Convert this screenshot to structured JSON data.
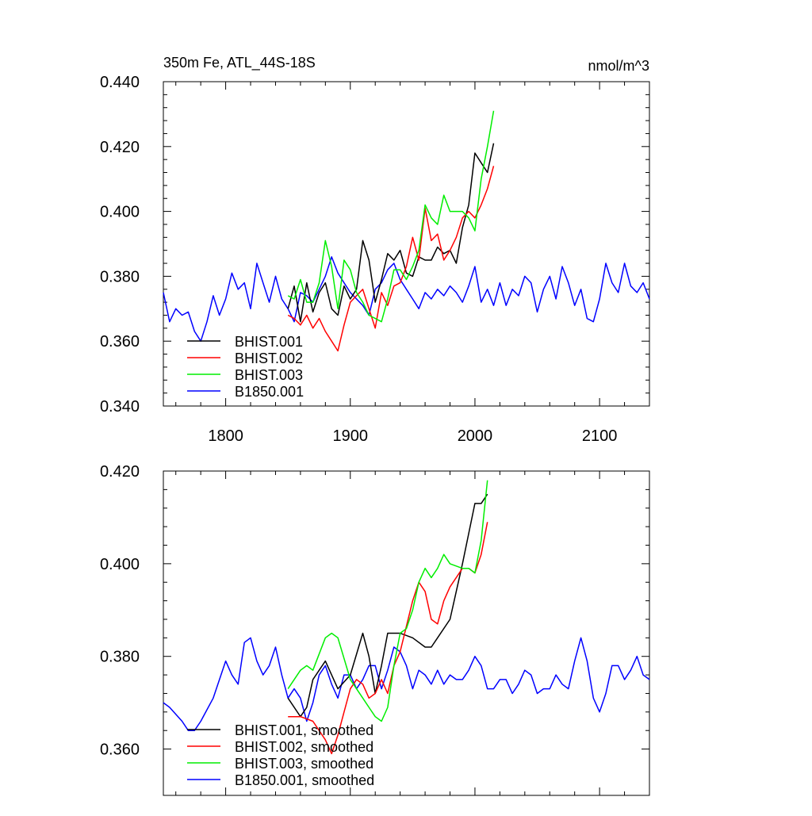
{
  "chart_data": [
    {
      "type": "line",
      "title": "350m Fe, ATL_44S-18S",
      "units": "nmol/m^3",
      "xlim": [
        1750,
        2140
      ],
      "ylim": [
        0.34,
        0.44
      ],
      "x_ticks": [
        1800,
        1900,
        2000,
        2100
      ],
      "x_tick_labels": [
        "1800",
        "1900",
        "2000",
        "2100"
      ],
      "y_ticks": [
        0.34,
        0.36,
        0.38,
        0.4,
        0.42,
        0.44
      ],
      "y_tick_labels": [
        "0.340",
        "0.360",
        "0.380",
        "0.400",
        "0.420",
        "0.440"
      ],
      "legend_position": "bottom-left",
      "series": [
        {
          "name": "BHIST.001",
          "color": "#000000",
          "x": [
            1850,
            1855,
            1860,
            1865,
            1870,
            1875,
            1880,
            1885,
            1890,
            1895,
            1900,
            1905,
            1910,
            1915,
            1920,
            1925,
            1930,
            1935,
            1940,
            1945,
            1950,
            1955,
            1960,
            1965,
            1970,
            1975,
            1980,
            1985,
            1990,
            1995,
            2000,
            2005,
            2010,
            2015
          ],
          "y": [
            0.37,
            0.377,
            0.366,
            0.378,
            0.369,
            0.375,
            0.378,
            0.37,
            0.368,
            0.377,
            0.373,
            0.376,
            0.391,
            0.385,
            0.372,
            0.379,
            0.387,
            0.385,
            0.388,
            0.381,
            0.38,
            0.386,
            0.385,
            0.385,
            0.389,
            0.387,
            0.388,
            0.384,
            0.395,
            0.402,
            0.418,
            0.415,
            0.412,
            0.421
          ]
        },
        {
          "name": "BHIST.002",
          "color": "#ff0000",
          "x": [
            1850,
            1855,
            1860,
            1865,
            1870,
            1875,
            1880,
            1885,
            1890,
            1895,
            1900,
            1905,
            1910,
            1915,
            1920,
            1925,
            1930,
            1935,
            1940,
            1945,
            1950,
            1955,
            1960,
            1965,
            1970,
            1975,
            1980,
            1985,
            1990,
            1995,
            2000,
            2005,
            2010,
            2015
          ],
          "y": [
            0.368,
            0.367,
            0.365,
            0.368,
            0.364,
            0.367,
            0.363,
            0.36,
            0.357,
            0.365,
            0.372,
            0.374,
            0.376,
            0.37,
            0.364,
            0.375,
            0.371,
            0.377,
            0.378,
            0.383,
            0.392,
            0.385,
            0.401,
            0.391,
            0.393,
            0.385,
            0.388,
            0.392,
            0.398,
            0.4,
            0.398,
            0.402,
            0.407,
            0.414
          ]
        },
        {
          "name": "BHIST.003",
          "color": "#00ee00",
          "x": [
            1850,
            1855,
            1860,
            1865,
            1870,
            1875,
            1880,
            1885,
            1890,
            1895,
            1900,
            1905,
            1910,
            1915,
            1920,
            1925,
            1930,
            1935,
            1940,
            1945,
            1950,
            1955,
            1960,
            1965,
            1970,
            1975,
            1980,
            1985,
            1990,
            1995,
            2000,
            2005,
            2010,
            2015
          ],
          "y": [
            0.374,
            0.373,
            0.379,
            0.372,
            0.372,
            0.378,
            0.391,
            0.383,
            0.37,
            0.385,
            0.382,
            0.375,
            0.372,
            0.368,
            0.367,
            0.366,
            0.373,
            0.382,
            0.382,
            0.379,
            0.383,
            0.388,
            0.402,
            0.398,
            0.396,
            0.405,
            0.4,
            0.4,
            0.4,
            0.398,
            0.394,
            0.41,
            0.42,
            0.431
          ]
        },
        {
          "name": "B1850.001",
          "color": "#0000ff",
          "x": [
            1750,
            1755,
            1760,
            1765,
            1770,
            1775,
            1780,
            1785,
            1790,
            1795,
            1800,
            1805,
            1810,
            1815,
            1820,
            1825,
            1830,
            1835,
            1840,
            1845,
            1850,
            1855,
            1860,
            1865,
            1870,
            1875,
            1880,
            1885,
            1890,
            1895,
            1900,
            1905,
            1910,
            1915,
            1920,
            1925,
            1930,
            1935,
            1940,
            1945,
            1950,
            1955,
            1960,
            1965,
            1970,
            1975,
            1980,
            1985,
            1990,
            1995,
            2000,
            2005,
            2010,
            2015,
            2020,
            2025,
            2030,
            2035,
            2040,
            2045,
            2050,
            2055,
            2060,
            2065,
            2070,
            2075,
            2080,
            2085,
            2090,
            2095,
            2100,
            2105,
            2110,
            2115,
            2120,
            2125,
            2130,
            2135,
            2140
          ],
          "y": [
            0.375,
            0.366,
            0.37,
            0.368,
            0.369,
            0.363,
            0.36,
            0.366,
            0.374,
            0.368,
            0.373,
            0.381,
            0.376,
            0.378,
            0.37,
            0.384,
            0.378,
            0.372,
            0.38,
            0.373,
            0.37,
            0.366,
            0.375,
            0.374,
            0.372,
            0.376,
            0.38,
            0.386,
            0.381,
            0.378,
            0.375,
            0.373,
            0.371,
            0.368,
            0.376,
            0.378,
            0.382,
            0.384,
            0.379,
            0.376,
            0.373,
            0.37,
            0.375,
            0.373,
            0.376,
            0.374,
            0.377,
            0.375,
            0.372,
            0.377,
            0.383,
            0.372,
            0.376,
            0.371,
            0.378,
            0.371,
            0.376,
            0.374,
            0.38,
            0.378,
            0.369,
            0.376,
            0.38,
            0.373,
            0.383,
            0.378,
            0.371,
            0.376,
            0.367,
            0.366,
            0.373,
            0.384,
            0.378,
            0.375,
            0.384,
            0.377,
            0.375,
            0.378,
            0.373
          ]
        }
      ]
    },
    {
      "type": "line",
      "xlim": [
        1750,
        2140
      ],
      "ylim": [
        0.35,
        0.42
      ],
      "x_ticks": [
        1800,
        1900,
        2000,
        2100
      ],
      "y_ticks": [
        0.36,
        0.38,
        0.4,
        0.42
      ],
      "y_tick_labels": [
        "0.360",
        "0.380",
        "0.400",
        "0.420"
      ],
      "legend_position": "bottom-left",
      "series": [
        {
          "name": "BHIST.001, smoothed",
          "color": "#000000",
          "x": [
            1850,
            1860,
            1865,
            1870,
            1880,
            1890,
            1900,
            1910,
            1915,
            1920,
            1925,
            1930,
            1940,
            1950,
            1960,
            1965,
            1970,
            1980,
            1990,
            2000,
            2005,
            2010
          ],
          "y": [
            0.371,
            0.367,
            0.369,
            0.375,
            0.379,
            0.373,
            0.376,
            0.385,
            0.38,
            0.372,
            0.378,
            0.385,
            0.385,
            0.384,
            0.382,
            0.382,
            0.384,
            0.388,
            0.4,
            0.413,
            0.413,
            0.415
          ]
        },
        {
          "name": "BHIST.002, smoothed",
          "color": "#ff0000",
          "x": [
            1850,
            1860,
            1870,
            1880,
            1885,
            1890,
            1895,
            1900,
            1905,
            1910,
            1915,
            1920,
            1925,
            1930,
            1935,
            1940,
            1950,
            1955,
            1960,
            1965,
            1970,
            1975,
            1980,
            1990,
            1995,
            2000,
            2005,
            2010
          ],
          "y": [
            0.367,
            0.367,
            0.366,
            0.362,
            0.359,
            0.363,
            0.368,
            0.373,
            0.375,
            0.374,
            0.371,
            0.372,
            0.375,
            0.372,
            0.378,
            0.381,
            0.392,
            0.396,
            0.394,
            0.388,
            0.387,
            0.392,
            0.395,
            0.399,
            0.399,
            0.398,
            0.402,
            0.409
          ]
        },
        {
          "name": "BHIST.003, smoothed",
          "color": "#00ee00",
          "x": [
            1850,
            1860,
            1865,
            1870,
            1880,
            1885,
            1890,
            1900,
            1905,
            1910,
            1915,
            1920,
            1925,
            1930,
            1935,
            1940,
            1945,
            1950,
            1955,
            1960,
            1965,
            1970,
            1975,
            1980,
            1990,
            1995,
            2000,
            2005,
            2010
          ],
          "y": [
            0.373,
            0.377,
            0.378,
            0.377,
            0.384,
            0.385,
            0.384,
            0.375,
            0.373,
            0.371,
            0.369,
            0.367,
            0.366,
            0.369,
            0.378,
            0.385,
            0.386,
            0.39,
            0.396,
            0.399,
            0.397,
            0.399,
            0.402,
            0.4,
            0.399,
            0.399,
            0.398,
            0.405,
            0.418
          ]
        },
        {
          "name": "B1850.001, smoothed",
          "color": "#0000ff",
          "x": [
            1750,
            1755,
            1765,
            1770,
            1775,
            1780,
            1790,
            1800,
            1805,
            1810,
            1815,
            1820,
            1825,
            1830,
            1835,
            1840,
            1845,
            1850,
            1855,
            1860,
            1865,
            1870,
            1875,
            1880,
            1885,
            1890,
            1895,
            1900,
            1905,
            1910,
            1915,
            1920,
            1925,
            1930,
            1935,
            1940,
            1945,
            1950,
            1955,
            1960,
            1965,
            1970,
            1975,
            1980,
            1985,
            1990,
            1995,
            2000,
            2005,
            2010,
            2015,
            2020,
            2025,
            2030,
            2035,
            2040,
            2045,
            2050,
            2055,
            2060,
            2065,
            2070,
            2075,
            2080,
            2085,
            2090,
            2095,
            2100,
            2105,
            2110,
            2115,
            2120,
            2125,
            2130,
            2135,
            2140
          ],
          "y": [
            0.37,
            0.369,
            0.366,
            0.364,
            0.364,
            0.366,
            0.371,
            0.379,
            0.376,
            0.374,
            0.383,
            0.384,
            0.379,
            0.376,
            0.378,
            0.382,
            0.376,
            0.371,
            0.373,
            0.371,
            0.366,
            0.37,
            0.376,
            0.378,
            0.374,
            0.371,
            0.376,
            0.376,
            0.373,
            0.375,
            0.378,
            0.378,
            0.373,
            0.377,
            0.382,
            0.381,
            0.378,
            0.373,
            0.377,
            0.376,
            0.374,
            0.377,
            0.374,
            0.376,
            0.375,
            0.375,
            0.377,
            0.38,
            0.378,
            0.373,
            0.373,
            0.375,
            0.375,
            0.372,
            0.374,
            0.377,
            0.376,
            0.372,
            0.373,
            0.373,
            0.376,
            0.374,
            0.373,
            0.379,
            0.384,
            0.379,
            0.371,
            0.368,
            0.372,
            0.378,
            0.378,
            0.375,
            0.377,
            0.38,
            0.376,
            0.375
          ]
        }
      ]
    }
  ]
}
